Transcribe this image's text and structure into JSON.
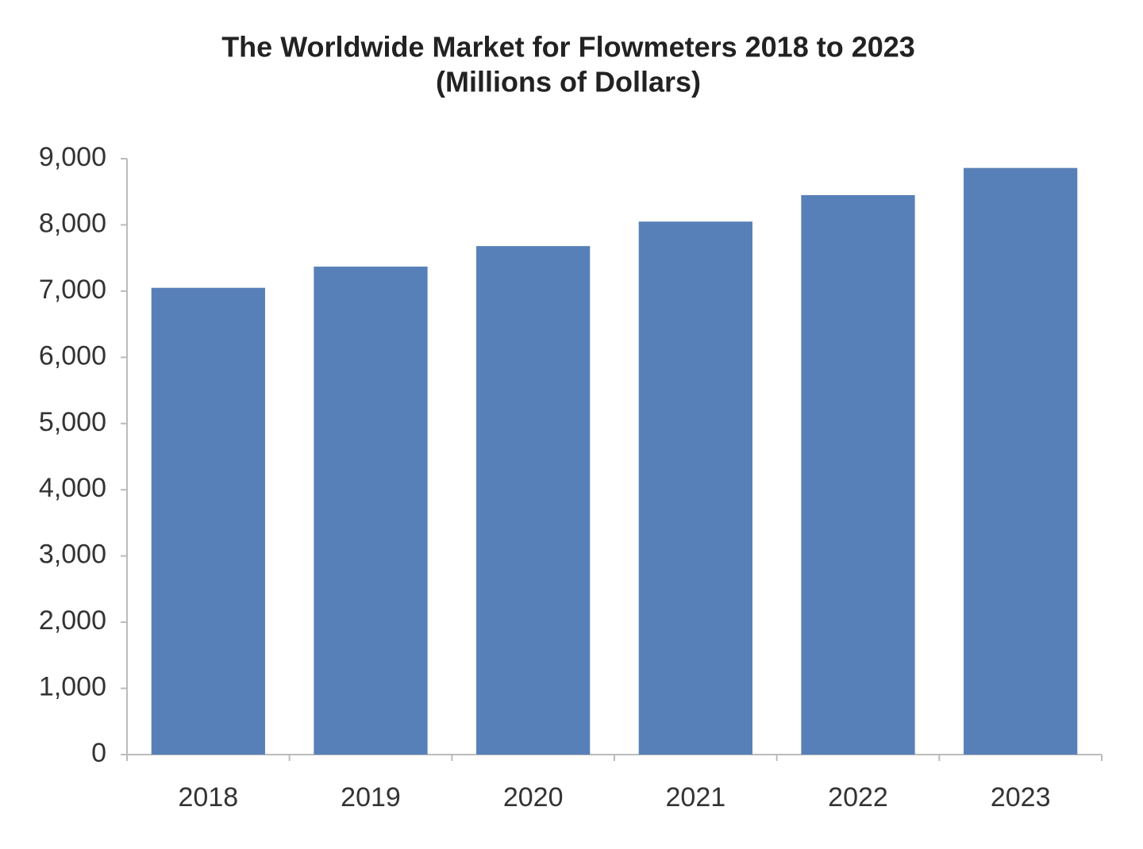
{
  "chart_data": {
    "type": "bar",
    "title": "The Worldwide Market for Flowmeters 2018 to 2023",
    "subtitle": "(Millions of Dollars)",
    "categories": [
      "2018",
      "2019",
      "2020",
      "2021",
      "2022",
      "2023"
    ],
    "values": [
      7050,
      7370,
      7680,
      8050,
      8450,
      8860
    ],
    "color": "#5880b8",
    "ylim": [
      0,
      9000
    ],
    "yticks": [
      0,
      {
        "value": 1000,
        "label": "1,000"
      },
      {
        "value": 2000,
        "label": "2,000"
      },
      {
        "value": 3000,
        "label": "3,000"
      },
      {
        "value": 4000,
        "label": "4,000"
      },
      {
        "value": 5000,
        "label": "5,000"
      },
      {
        "value": 6000,
        "label": "6,000"
      },
      {
        "value": 7000,
        "label": "7,000"
      },
      {
        "value": 8000,
        "label": "8,000"
      },
      {
        "value": 9000,
        "label": "9,000"
      }
    ],
    "grid": false
  }
}
